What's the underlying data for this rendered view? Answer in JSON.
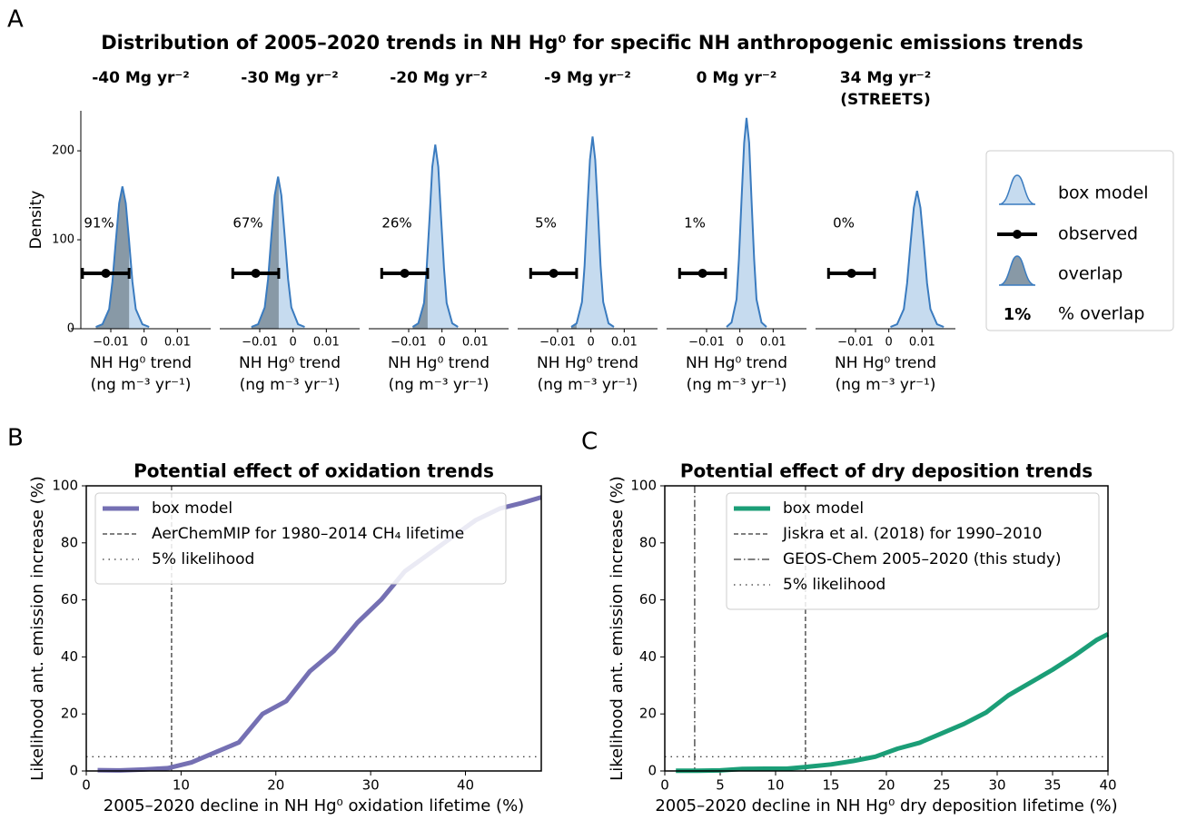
{
  "chart_data": [
    {
      "type": "density",
      "panel_label": "A",
      "title": "Distribution of 2005–2020 trends in NH Hg⁰ for specific NH anthropogenic emissions trends",
      "ylabel": "Density",
      "xlabel": [
        "NH Hg⁰ trend",
        "(ng m⁻³ yr⁻¹)"
      ],
      "xlim": [
        -0.022,
        0.02
      ],
      "xticks": [
        {
          "value": -0.01,
          "label": "−0.01"
        },
        0,
        0.01
      ],
      "ylim": [
        0,
        245
      ],
      "yticks": [
        0,
        100,
        200
      ],
      "colors": {
        "box_model": "#c6dbef",
        "box_model_line": "#3a7bbf",
        "overlap": "#8899a6",
        "observed": "#000000"
      },
      "legend": [
        "box model",
        "observed",
        "overlap"
      ],
      "overlap_key": {
        "sample": "1%",
        "label": "% overlap"
      },
      "panels": [
        {
          "title": [
            "-40 Mg yr⁻²"
          ],
          "overlap": "91%",
          "observed": -0.0115,
          "error": 0.007,
          "x": [
            -0.0145,
            -0.0125,
            -0.0105,
            -0.0095,
            -0.0085,
            -0.0075,
            -0.0065,
            -0.0055,
            -0.0045,
            -0.0035,
            -0.0025,
            -0.0005,
            0.0015
          ],
          "y": [
            2,
            5,
            22,
            53,
            98,
            141,
            160,
            141,
            98,
            53,
            22,
            5,
            2
          ]
        },
        {
          "title": [
            "-30 Mg yr⁻²"
          ],
          "overlap": "67%",
          "observed": -0.0112,
          "error": 0.0069,
          "x": [
            -0.0125,
            -0.0105,
            -0.0085,
            -0.0075,
            -0.0065,
            -0.0055,
            -0.0045,
            -0.0035,
            -0.0025,
            -0.0015,
            -0.0005,
            0.0015,
            0.0035
          ],
          "y": [
            2,
            5,
            24,
            56,
            104,
            150,
            171,
            150,
            104,
            56,
            24,
            5,
            2
          ]
        },
        {
          "title": [
            "-20 Mg yr⁻²"
          ],
          "overlap": "26%",
          "observed": -0.0112,
          "error": 0.0069,
          "x": [
            -0.0088,
            -0.0071,
            -0.0054,
            -0.0046,
            -0.0037,
            -0.0029,
            -0.002,
            -0.0011,
            -0.0003,
            0.0006,
            0.0014,
            0.0031,
            0.0048
          ],
          "y": [
            2,
            6,
            29,
            68,
            126,
            182,
            207,
            182,
            126,
            68,
            29,
            6,
            2
          ]
        },
        {
          "title": [
            "-9 Mg yr⁻²"
          ],
          "overlap": "5%",
          "observed": -0.0112,
          "error": 0.0069,
          "x": [
            -0.0059,
            -0.0043,
            -0.0027,
            -0.0019,
            -0.0011,
            -0.0003,
            0.0005,
            0.0013,
            0.0021,
            0.0029,
            0.0037,
            0.0053,
            0.0069
          ],
          "y": [
            2,
            6,
            30,
            71,
            132,
            190,
            216,
            190,
            132,
            71,
            30,
            6,
            2
          ]
        },
        {
          "title": [
            "0 Mg yr⁻²"
          ],
          "overlap": "1%",
          "observed": -0.0112,
          "error": 0.0069,
          "x": [
            -0.004,
            -0.0025,
            -0.001,
            -0.0003,
            0.0005,
            0.0013,
            0.002,
            0.0028,
            0.0035,
            0.0043,
            0.005,
            0.0065,
            0.008
          ],
          "y": [
            2,
            7,
            33,
            78,
            145,
            209,
            237,
            209,
            145,
            78,
            33,
            7,
            2
          ]
        },
        {
          "title": [
            "34 Mg yr⁻²",
            "(STREETS)"
          ],
          "overlap": "0%",
          "observed": -0.0112,
          "error": 0.0069,
          "x": [
            0.0005,
            0.0025,
            0.0045,
            0.0055,
            0.0065,
            0.0075,
            0.0085,
            0.0095,
            0.0105,
            0.0115,
            0.0125,
            0.0145,
            0.0165
          ],
          "y": [
            2,
            5,
            22,
            51,
            95,
            136,
            155,
            136,
            95,
            51,
            22,
            5,
            2
          ]
        }
      ]
    },
    {
      "type": "line",
      "panel_label": "B",
      "title": "Potential effect of oxidation trends",
      "xlabel": "2005–2020 decline in NH Hg⁰ oxidation lifetime (%)",
      "ylabel": "Likelihood ant. emission increase (%)",
      "xlim": [
        0,
        48
      ],
      "xticks": [
        0,
        10,
        20,
        30,
        40
      ],
      "ylim": [
        0,
        100
      ],
      "yticks": [
        0,
        20,
        40,
        60,
        80,
        100
      ],
      "series": [
        {
          "name": "box model",
          "color": "#7570b3",
          "x": [
            1.2,
            3.6,
            6.1,
            8.6,
            11.1,
            13.6,
            16.1,
            18.6,
            21.1,
            23.6,
            26.1,
            28.6,
            31.1,
            33.6,
            36.1,
            38.6,
            41.1,
            43.6,
            46,
            48
          ],
          "values": [
            0.3,
            0.2,
            0.5,
            1,
            3,
            6.5,
            10,
            20,
            24.5,
            35,
            42,
            52,
            60,
            70,
            76,
            82,
            88,
            92,
            94,
            96
          ]
        }
      ],
      "reference_lines": [
        {
          "name": "AerChemMIP for 1980–2014 CH₄ lifetime",
          "x": 9,
          "style": "dashed"
        },
        {
          "name": "5% likelihood",
          "y": 5,
          "style": "dotted"
        }
      ]
    },
    {
      "type": "line",
      "panel_label": "C",
      "title": "Potential effect of dry deposition trends",
      "xlabel": "2005–2020 decline in NH Hg⁰ dry deposition lifetime (%)",
      "ylabel": "Likelihood ant. emission increase (%)",
      "xlim": [
        0,
        40
      ],
      "xticks": [
        0,
        5,
        10,
        15,
        20,
        25,
        30,
        35,
        40
      ],
      "ylim": [
        0,
        100
      ],
      "yticks": [
        0,
        20,
        40,
        60,
        80,
        100
      ],
      "series": [
        {
          "name": "box model",
          "color": "#1b9e77",
          "x": [
            1,
            3,
            5,
            7,
            9,
            11,
            13,
            15,
            17,
            19,
            21,
            23,
            25,
            27,
            29,
            31,
            33,
            35,
            37,
            39,
            40
          ],
          "values": [
            0.1,
            0.1,
            0.2,
            0.7,
            0.8,
            0.8,
            1.5,
            2.3,
            3.5,
            5,
            7.8,
            9.9,
            13.2,
            16.5,
            20.5,
            26.5,
            31,
            35.5,
            40.5,
            46,
            48
          ]
        }
      ],
      "reference_lines": [
        {
          "name": "Jiskra et al. (2018) for 1990–2010",
          "x": 12.7,
          "style": "dashed"
        },
        {
          "name": "GEOS-Chem 2005–2020 (this study)",
          "x": 2.7,
          "style": "dashdot"
        },
        {
          "name": "5% likelihood",
          "y": 5,
          "style": "dotted"
        }
      ]
    }
  ]
}
